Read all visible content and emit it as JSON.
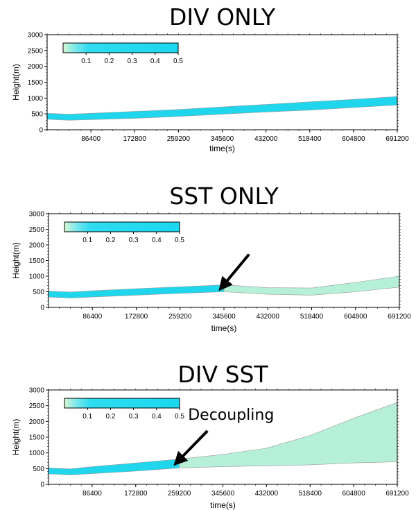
{
  "chart_data": [
    {
      "type": "area",
      "title": "DIV ONLY",
      "xlabel": "time(s)",
      "ylabel": "Height(m)",
      "xlim": [
        0,
        691200
      ],
      "ylim": [
        0,
        3000
      ],
      "xticks": [
        86400,
        172800,
        259200,
        345600,
        432000,
        518400,
        604800,
        691200
      ],
      "yticks": [
        0,
        500,
        1000,
        1500,
        2000,
        2500,
        3000
      ],
      "colorbar": {
        "ticks": [
          "0.1",
          "0.2",
          "0.3",
          "0.4",
          "0.5"
        ],
        "range": [
          0,
          0.5
        ]
      },
      "series": [
        {
          "x": [
            0,
            43200,
            86400,
            172800,
            259200,
            345600,
            432000,
            518400,
            604800,
            691200
          ],
          "base": [
            330,
            300,
            320,
            360,
            420,
            490,
            560,
            620,
            700,
            780
          ],
          "top": [
            520,
            490,
            520,
            580,
            640,
            720,
            800,
            880,
            960,
            1050
          ],
          "color": "#1fd6ec"
        }
      ],
      "annotation": null
    },
    {
      "type": "area",
      "title": "SST ONLY",
      "xlabel": "time(s)",
      "ylabel": "Height(m)",
      "xlim": [
        0,
        691200
      ],
      "ylim": [
        0,
        3000
      ],
      "xticks": [
        86400,
        172800,
        259200,
        345600,
        432000,
        518400,
        604800,
        691200
      ],
      "yticks": [
        0,
        500,
        1000,
        1500,
        2000,
        2500,
        3000
      ],
      "colorbar": {
        "ticks": [
          "0.1",
          "0.2",
          "0.3",
          "0.4",
          "0.5"
        ],
        "range": [
          0,
          0.5
        ]
      },
      "series": [
        {
          "x": [
            0,
            43200,
            86400,
            172800,
            259200,
            345600
          ],
          "base": [
            330,
            300,
            330,
            390,
            450,
            500
          ],
          "top": [
            520,
            490,
            530,
            600,
            660,
            720
          ],
          "color": "#1fd6ec"
        },
        {
          "x": [
            345600,
            432000,
            518400,
            604800,
            691200
          ],
          "base": [
            500,
            420,
            390,
            500,
            650
          ],
          "top": [
            720,
            630,
            620,
            800,
            1000
          ],
          "color": "#b6f0d8"
        }
      ],
      "annotation": {
        "label": "",
        "arrow_tail": [
          395000,
          1700
        ],
        "arrow_head": [
          345600,
          730
        ]
      }
    },
    {
      "type": "area",
      "title": "DIV SST",
      "xlabel": "time(s)",
      "ylabel": "Height(m)",
      "xlim": [
        0,
        691200
      ],
      "ylim": [
        0,
        3000
      ],
      "xticks": [
        86400,
        172800,
        259200,
        345600,
        432000,
        518400,
        604800,
        691200
      ],
      "yticks": [
        0,
        500,
        1000,
        1500,
        2000,
        2500,
        3000
      ],
      "colorbar": {
        "ticks": [
          "0.1",
          "0.2",
          "0.3",
          "0.4",
          "0.5"
        ],
        "range": [
          0,
          0.5
        ]
      },
      "series": [
        {
          "x": [
            0,
            43200,
            86400,
            172800,
            259200
          ],
          "base": [
            330,
            300,
            340,
            420,
            520
          ],
          "top": [
            520,
            490,
            560,
            680,
            800
          ],
          "color": "#1fd6ec"
        },
        {
          "x": [
            259200,
            345600,
            432000,
            518400,
            604800,
            691200
          ],
          "base": [
            520,
            560,
            590,
            620,
            680,
            720
          ],
          "top": [
            800,
            950,
            1150,
            1550,
            2100,
            2600
          ],
          "color": "#b6f0d8"
        }
      ],
      "annotation": {
        "label": "Decoupling",
        "arrow_tail": [
          315000,
          1700
        ],
        "arrow_head": [
          259200,
          780
        ]
      }
    }
  ]
}
